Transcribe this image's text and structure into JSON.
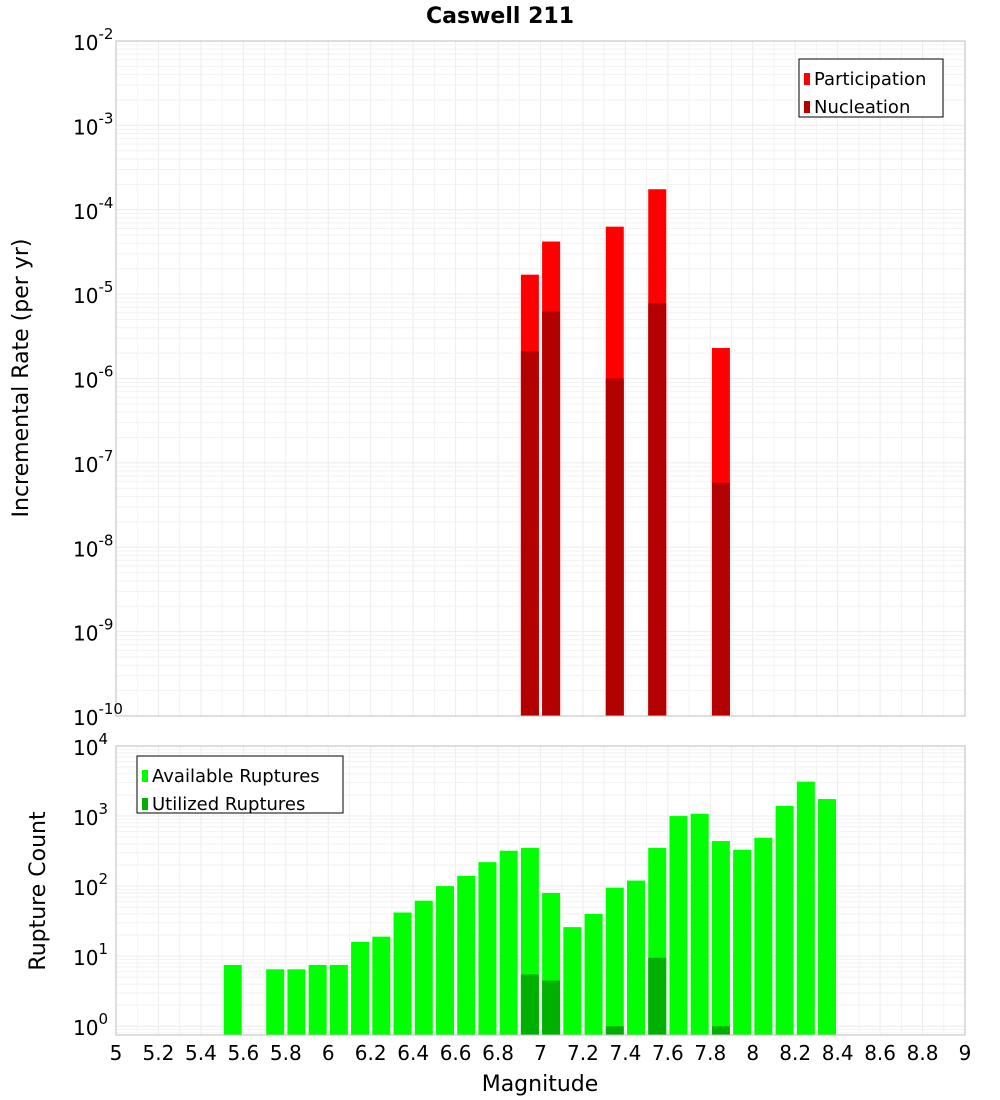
{
  "chart_data": [
    {
      "type": "bar",
      "title": "Caswell 211",
      "xlabel": "Magnitude",
      "ylabel": "Incremental Rate (per yr)",
      "yscale": "log",
      "ylim": [
        1e-10,
        0.01
      ],
      "xlim": [
        5,
        9
      ],
      "grid": true,
      "legend_position": "top-right",
      "y_ticks": [
        {
          "base": "10",
          "exp": "-2",
          "value": 0.01
        },
        {
          "base": "10",
          "exp": "-3",
          "value": 0.001
        },
        {
          "base": "10",
          "exp": "-4",
          "value": 0.0001
        },
        {
          "base": "10",
          "exp": "-5",
          "value": 1e-05
        },
        {
          "base": "10",
          "exp": "-6",
          "value": 1e-06
        },
        {
          "base": "10",
          "exp": "-7",
          "value": 1e-07
        },
        {
          "base": "10",
          "exp": "-8",
          "value": 1e-08
        },
        {
          "base": "10",
          "exp": "-9",
          "value": 1e-09
        },
        {
          "base": "10",
          "exp": "-10",
          "value": 1e-10
        }
      ],
      "series": [
        {
          "name": "Participation",
          "color": "#ff0000",
          "points": [
            [
              6.95,
              1.7e-05
            ],
            [
              7.05,
              4.2e-05
            ],
            [
              7.35,
              6.3e-05
            ],
            [
              7.55,
              0.000175
            ],
            [
              7.85,
              2.3e-06
            ]
          ]
        },
        {
          "name": "Nucleation",
          "color": "#b30000",
          "points": [
            [
              6.95,
              2.1e-06
            ],
            [
              7.05,
              6.2e-06
            ],
            [
              7.35,
              1e-06
            ],
            [
              7.55,
              7.8e-06
            ],
            [
              7.85,
              5.8e-08
            ]
          ]
        }
      ]
    },
    {
      "type": "bar",
      "xlabel": "Magnitude",
      "ylabel": "Rupture Count",
      "yscale": "log",
      "ylim": [
        0.75,
        10000
      ],
      "xlim": [
        5,
        9
      ],
      "grid": true,
      "legend_position": "top-left",
      "x_ticks": [
        "5",
        "5.2",
        "5.4",
        "5.6",
        "5.8",
        "6",
        "6.2",
        "6.4",
        "6.6",
        "6.8",
        "7",
        "7.2",
        "7.4",
        "7.6",
        "7.8",
        "8",
        "8.2",
        "8.4",
        "8.6",
        "8.8",
        "9"
      ],
      "y_ticks": [
        {
          "base": "10",
          "exp": "4",
          "value": 10000
        },
        {
          "base": "10",
          "exp": "3",
          "value": 1000
        },
        {
          "base": "10",
          "exp": "2",
          "value": 100
        },
        {
          "base": "10",
          "exp": "1",
          "value": 10
        },
        {
          "base": "10",
          "exp": "0",
          "value": 1
        }
      ],
      "series": [
        {
          "name": "Available Ruptures",
          "color": "#00ff00",
          "points": [
            [
              5.55,
              7.5
            ],
            [
              5.75,
              6.5
            ],
            [
              5.85,
              6.5
            ],
            [
              5.95,
              7.5
            ],
            [
              6.05,
              7.5
            ],
            [
              6.15,
              16
            ],
            [
              6.25,
              19
            ],
            [
              6.35,
              42
            ],
            [
              6.45,
              62
            ],
            [
              6.55,
              100
            ],
            [
              6.65,
              140
            ],
            [
              6.75,
              220
            ],
            [
              6.85,
              320
            ],
            [
              6.95,
              350
            ],
            [
              7.05,
              80
            ],
            [
              7.15,
              26
            ],
            [
              7.25,
              40
            ],
            [
              7.35,
              95
            ],
            [
              7.45,
              120
            ],
            [
              7.55,
              350
            ],
            [
              7.65,
              1000
            ],
            [
              7.75,
              1080
            ],
            [
              7.85,
              440
            ],
            [
              7.95,
              330
            ],
            [
              8.05,
              490
            ],
            [
              8.15,
              1400
            ],
            [
              8.25,
              3100
            ],
            [
              8.35,
              1750
            ]
          ]
        },
        {
          "name": "Utilized Ruptures",
          "color": "#00b000",
          "points": [
            [
              6.95,
              5.5
            ],
            [
              7.05,
              4.5
            ],
            [
              7.35,
              1.0
            ],
            [
              7.55,
              9.5
            ],
            [
              7.85,
              1.0
            ]
          ]
        }
      ]
    }
  ]
}
